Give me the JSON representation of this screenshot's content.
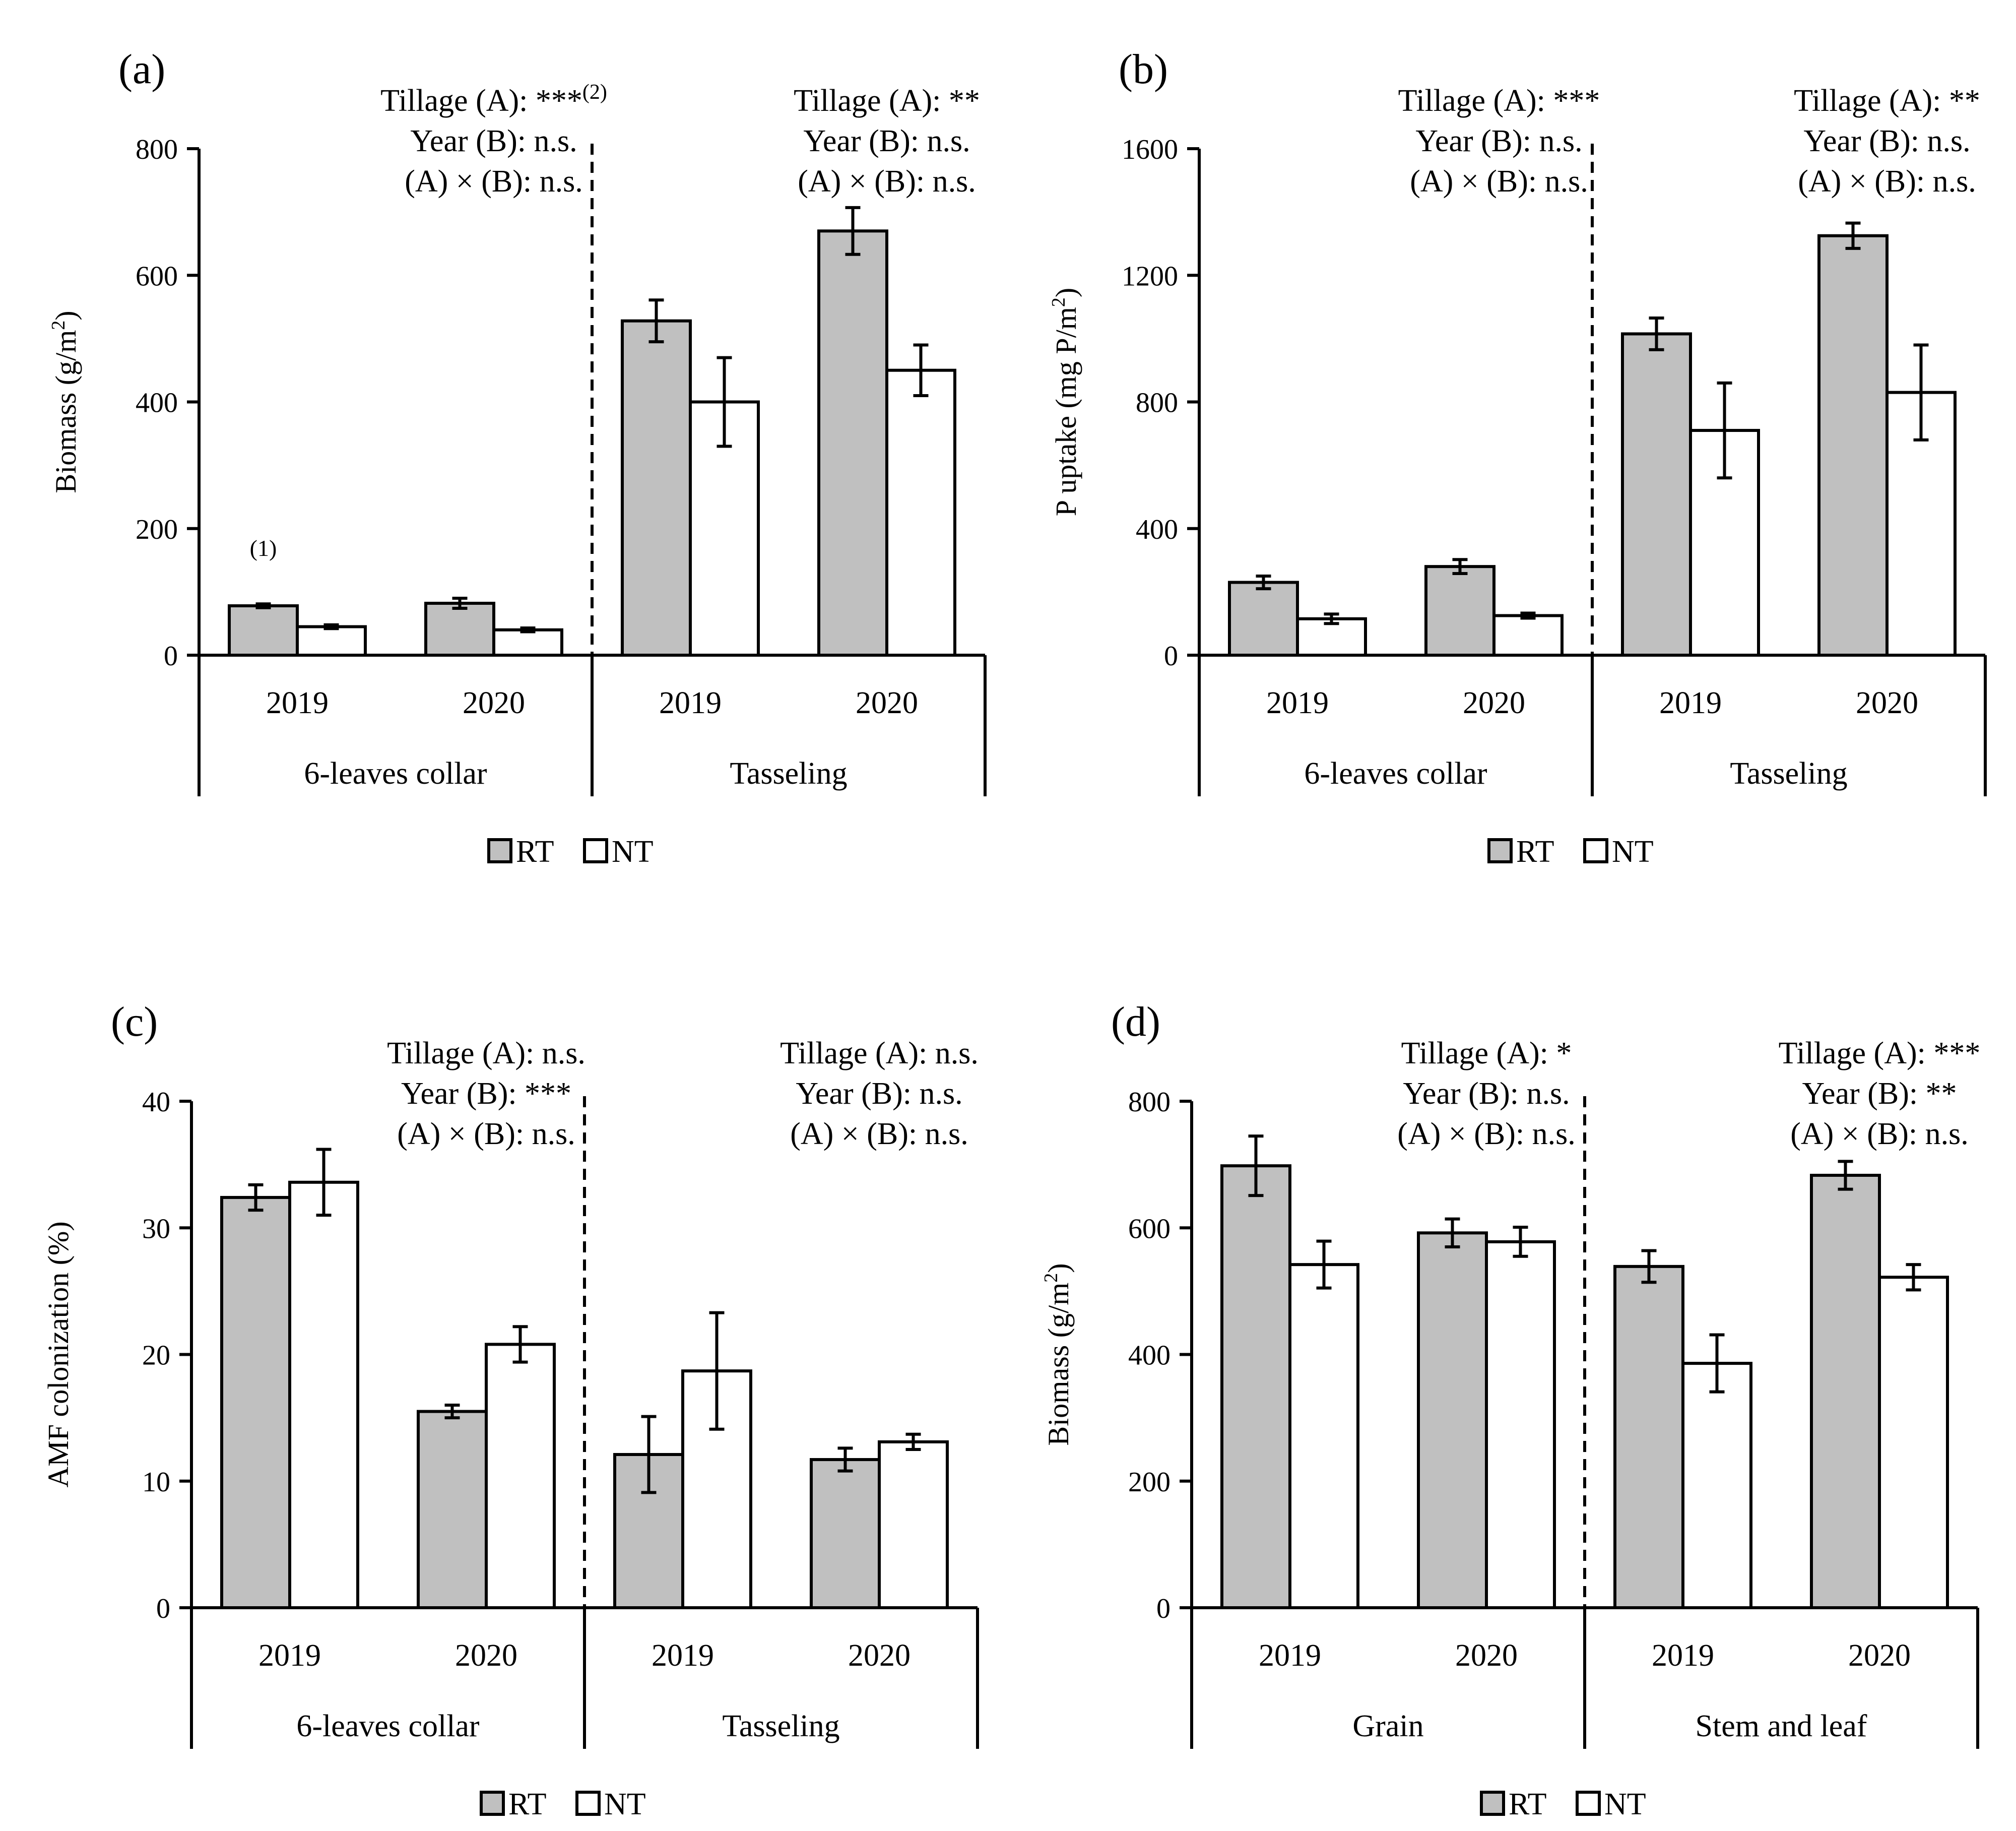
{
  "chart_data": [
    {
      "type": "bar",
      "panel_label": "(a)",
      "ylabel": "Biomass (g/m2)",
      "ylabel_parts": {
        "main": "Biomass (g/m",
        "sup": "2",
        "end": ")"
      },
      "ylim": [
        0,
        800
      ],
      "yticks": [
        0,
        200,
        400,
        600,
        800
      ],
      "groups": [
        "6-leaves collar",
        "Tasseling"
      ],
      "categories": [
        "2019",
        "2020",
        "2019",
        "2020"
      ],
      "series": [
        {
          "name": "RT",
          "values": [
            78,
            82,
            528,
            670
          ],
          "errors": [
            3,
            8,
            33,
            37
          ]
        },
        {
          "name": "NT",
          "values": [
            45,
            40,
            400,
            450
          ],
          "errors": [
            3,
            3,
            70,
            40
          ]
        }
      ],
      "annotations": [
        {
          "text": "(1)",
          "bar": 0
        }
      ],
      "stats": [
        [
          {
            "main": "Tillage (A): ***",
            "sup": "(2)"
          },
          {
            "main": "Year (B): n.s."
          },
          {
            "main": "(A) × (B): n.s."
          }
        ],
        [
          {
            "main": "Tillage (A): **"
          },
          {
            "main": "Year (B): n.s."
          },
          {
            "main": "(A) × (B): n.s."
          }
        ]
      ],
      "legend": [
        "RT",
        "NT"
      ]
    },
    {
      "type": "bar",
      "panel_label": "(b)",
      "ylabel": "P uptake (mg P/m2)",
      "ylabel_parts": {
        "main": "P uptake (mg P/m",
        "sup": "2",
        "end": ")"
      },
      "ylim": [
        0,
        1600
      ],
      "yticks": [
        0,
        400,
        800,
        1200,
        1600
      ],
      "groups": [
        "6-leaves collar",
        "Tasseling"
      ],
      "categories": [
        "2019",
        "2020",
        "2019",
        "2020"
      ],
      "series": [
        {
          "name": "RT",
          "values": [
            230,
            280,
            1015,
            1325
          ],
          "errors": [
            20,
            22,
            50,
            40
          ]
        },
        {
          "name": "NT",
          "values": [
            115,
            125,
            710,
            830
          ],
          "errors": [
            15,
            8,
            150,
            150
          ]
        }
      ],
      "annotations": [],
      "stats": [
        [
          {
            "main": "Tillage (A): ***"
          },
          {
            "main": "Year (B): n.s."
          },
          {
            "main": "(A) × (B): n.s."
          }
        ],
        [
          {
            "main": "Tillage (A): **"
          },
          {
            "main": "Year (B): n.s."
          },
          {
            "main": "(A) × (B): n.s."
          }
        ]
      ],
      "legend": [
        "RT",
        "NT"
      ]
    },
    {
      "type": "bar",
      "panel_label": "(c)",
      "ylabel": "AMF colonization (%)",
      "ylabel_parts": {
        "main": "AMF colonization (%)",
        "sup": "",
        "end": ""
      },
      "ylim": [
        0,
        40
      ],
      "yticks": [
        0,
        10,
        20,
        30,
        40
      ],
      "groups": [
        "6-leaves collar",
        "Tasseling"
      ],
      "categories": [
        "2019",
        "2020",
        "2019",
        "2020"
      ],
      "series": [
        {
          "name": "RT",
          "values": [
            32.4,
            15.5,
            12.1,
            11.7
          ],
          "errors": [
            1.0,
            0.5,
            3.0,
            0.9
          ]
        },
        {
          "name": "NT",
          "values": [
            33.6,
            20.8,
            18.7,
            13.1
          ],
          "errors": [
            2.6,
            1.4,
            4.6,
            0.6
          ]
        }
      ],
      "annotations": [],
      "stats": [
        [
          {
            "main": "Tillage (A): n.s."
          },
          {
            "main": "Year (B): ***"
          },
          {
            "main": "(A) × (B): n.s."
          }
        ],
        [
          {
            "main": "Tillage (A): n.s."
          },
          {
            "main": "Year (B): n.s."
          },
          {
            "main": "(A) × (B): n.s."
          }
        ]
      ],
      "legend": [
        "RT",
        "NT"
      ]
    },
    {
      "type": "bar",
      "panel_label": "(d)",
      "ylabel": "Biomass (g/m2)",
      "ylabel_parts": {
        "main": "Biomass (g/m",
        "sup": "2",
        "end": ")"
      },
      "ylim": [
        0,
        800
      ],
      "yticks": [
        0,
        200,
        400,
        600,
        800
      ],
      "groups": [
        "Grain",
        "Stem and leaf"
      ],
      "categories": [
        "2019",
        "2020",
        "2019",
        "2020"
      ],
      "series": [
        {
          "name": "RT",
          "values": [
            698,
            592,
            539,
            683
          ],
          "errors": [
            47,
            22,
            25,
            22
          ]
        },
        {
          "name": "NT",
          "values": [
            542,
            578,
            386,
            522
          ],
          "errors": [
            37,
            23,
            45,
            20
          ]
        }
      ],
      "annotations": [],
      "stats": [
        [
          {
            "main": "Tillage (A): *"
          },
          {
            "main": "Year (B): n.s."
          },
          {
            "main": "(A) × (B): n.s."
          }
        ],
        [
          {
            "main": "Tillage (A): ***"
          },
          {
            "main": "Year (B): **"
          },
          {
            "main": "(A) × (B): n.s."
          }
        ]
      ],
      "legend": [
        "RT",
        "NT"
      ]
    }
  ],
  "colors": {
    "rt_fill": "#c0c0c0",
    "nt_fill": "#ffffff",
    "stroke": "#000000"
  }
}
